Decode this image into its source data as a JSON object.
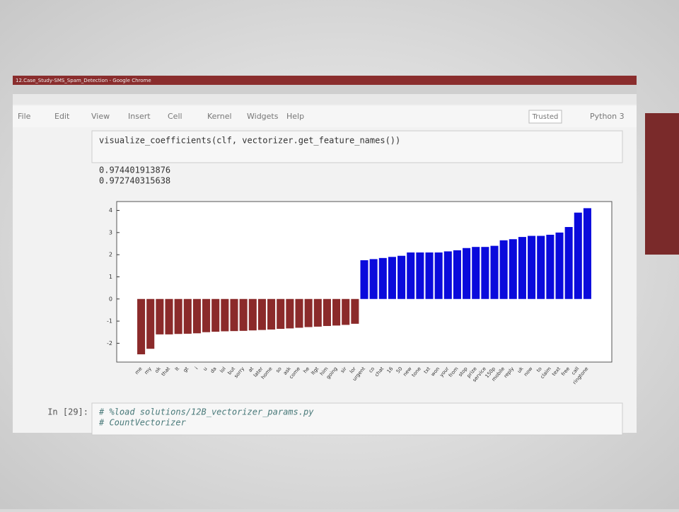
{
  "window_title": "12.Case_Study-SMS_Spam_Detection - Google Chrome",
  "menu": [
    "File",
    "Edit",
    "View",
    "Insert",
    "Cell",
    "Kernel",
    "Widgets",
    "Help"
  ],
  "trusted": "Trusted",
  "kernel": "Python 3",
  "cell_code": "visualize_coefficients(clf, vectorizer.get_feature_names())",
  "output": [
    "0.974401913876",
    "0.972740315638"
  ],
  "next_cell": {
    "prompt": "In [29]:",
    "lines": [
      "# %load solutions/12B_vectorizer_params.py",
      "# CountVectorizer"
    ]
  },
  "chart_data": {
    "type": "bar",
    "categories": [
      "me",
      "my",
      "ok",
      "that",
      "lt",
      "gt",
      "i",
      "u",
      "da",
      "lol",
      "but",
      "sorry",
      "at",
      "later",
      "home",
      "so",
      "ask",
      "come",
      "he",
      "ltgt",
      "him",
      "going",
      "sir",
      "lor",
      "urgent",
      "co",
      "chat",
      "16",
      "50",
      "new",
      "tone",
      "txt",
      "won",
      "your",
      "from",
      "stop",
      "prize",
      "service",
      "150p",
      "mobile",
      "reply",
      "uk",
      "now",
      "to",
      "claim",
      "text",
      "free",
      "call",
      "ringtone"
    ],
    "values": [
      -2.5,
      -2.25,
      -1.6,
      -1.6,
      -1.58,
      -1.57,
      -1.55,
      -1.5,
      -1.48,
      -1.46,
      -1.45,
      -1.44,
      -1.42,
      -1.4,
      -1.38,
      -1.35,
      -1.33,
      -1.3,
      -1.27,
      -1.25,
      -1.22,
      -1.2,
      -1.17,
      -1.12,
      1.75,
      1.8,
      1.85,
      1.9,
      1.95,
      2.1,
      2.1,
      2.1,
      2.1,
      2.15,
      2.2,
      2.3,
      2.35,
      2.35,
      2.4,
      2.65,
      2.7,
      2.8,
      2.85,
      2.85,
      2.9,
      3.0,
      3.25,
      3.9,
      4.1
    ],
    "color_negative": "#8b2a2a",
    "color_positive": "#0a0adc",
    "ylim": [
      -2.85,
      4.4
    ],
    "yticks": [
      -2,
      -1,
      0,
      1,
      2,
      3,
      4
    ],
    "grid": false
  }
}
